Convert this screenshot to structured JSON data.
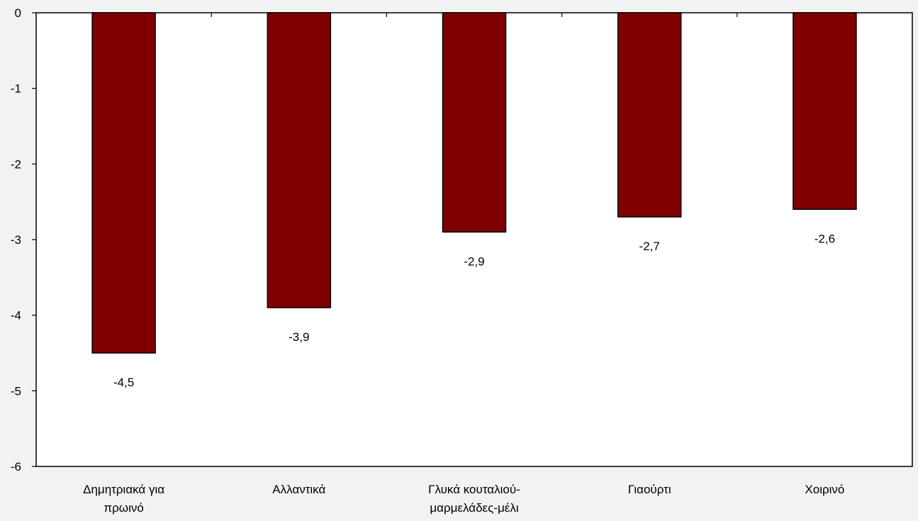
{
  "chart_data": {
    "type": "bar",
    "categories": [
      [
        "Δημητριακά για",
        "πρωινό"
      ],
      [
        "Αλλαντικά"
      ],
      [
        "Γλυκά κουταλιού-",
        "μαρμελάδες-μέλι"
      ],
      [
        "Γιαούρτι"
      ],
      [
        "Χοιρινό"
      ]
    ],
    "values": [
      -4.5,
      -3.9,
      -2.9,
      -2.7,
      -2.6
    ],
    "data_labels": [
      "-4,5",
      "-3,9",
      "-2,9",
      "-2,7",
      "-2,6"
    ],
    "y_ticks": [
      0,
      -1,
      -2,
      -3,
      -4,
      -5,
      -6
    ],
    "y_tick_labels": [
      "0",
      "-1",
      "-2",
      "-3",
      "-4",
      "-5",
      "-6"
    ],
    "ylim": [
      -6,
      0
    ],
    "title": "",
    "xlabel": "",
    "ylabel": "",
    "grid": false,
    "bar_color": "#800000",
    "plot_background": "#ffffff",
    "page_background": "#f2f2f2"
  }
}
